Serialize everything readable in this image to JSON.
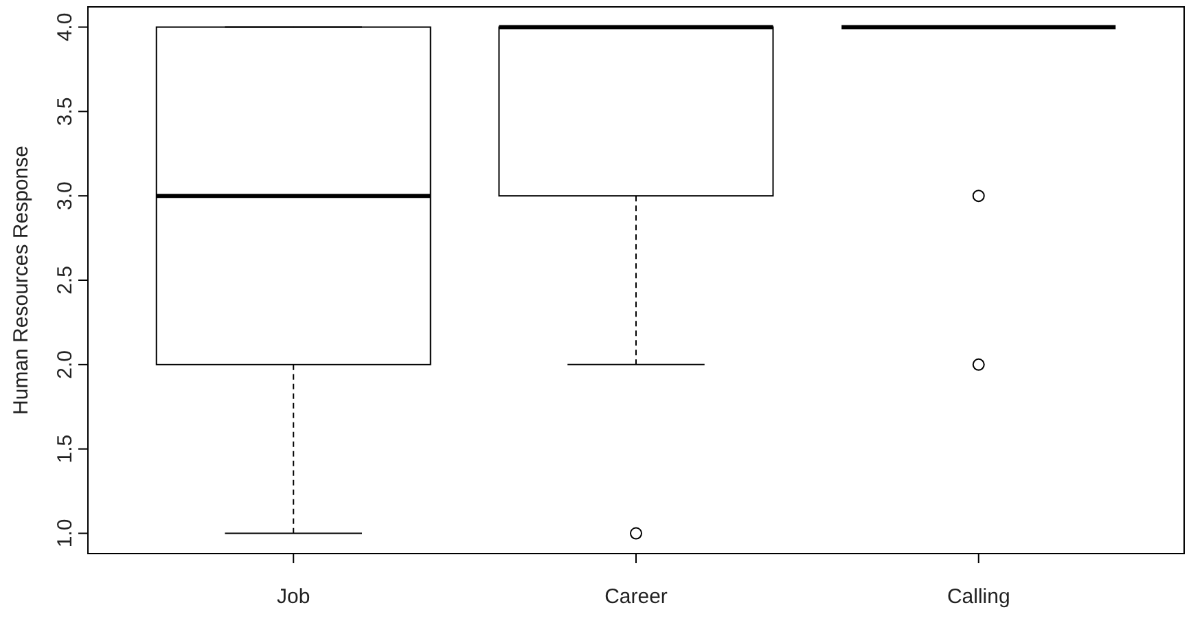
{
  "chart_data": {
    "type": "box",
    "ylabel": "Human Resources Response",
    "categories": [
      "Job",
      "Career",
      "Calling"
    ],
    "boxes": [
      {
        "low": 1,
        "q1": 2,
        "median": 3,
        "q3": 4,
        "high": 4
      },
      {
        "low": 2,
        "q1": 3,
        "median": 4,
        "q3": 4,
        "high": 4,
        "outliers": [
          1
        ]
      },
      {
        "low": 4,
        "q1": 4,
        "median": 4,
        "q3": 4,
        "high": 4,
        "outliers": [
          3,
          2
        ]
      }
    ],
    "ylim": [
      0.88,
      4.12
    ],
    "yticks": [
      {
        "value": 1,
        "label": "1.0"
      },
      {
        "value": 1.5,
        "label": "1.5"
      },
      {
        "value": 2,
        "label": "2.0"
      },
      {
        "value": 2.5,
        "label": "2.5"
      },
      {
        "value": 3,
        "label": "3.0"
      },
      {
        "value": 3.5,
        "label": "3.5"
      },
      {
        "value": 4,
        "label": "4.0"
      }
    ],
    "grid": false,
    "line_style": "dashed"
  }
}
